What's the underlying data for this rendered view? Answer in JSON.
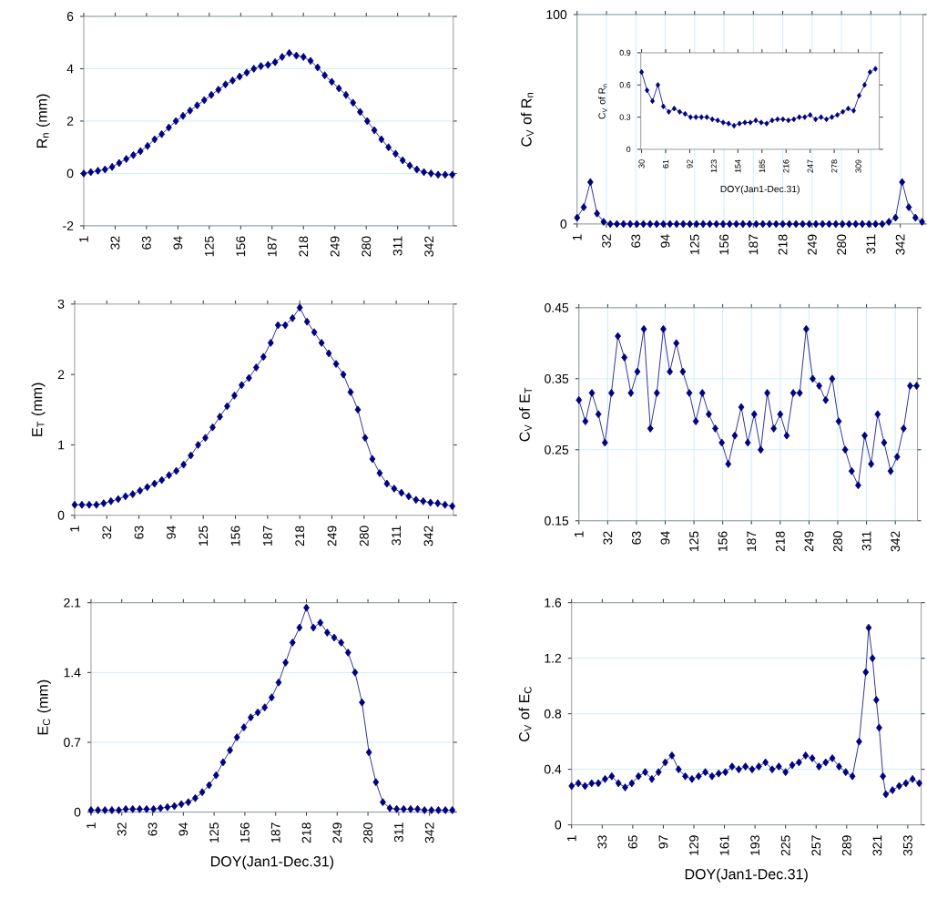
{
  "chart_data": [
    {
      "type": "line",
      "marker": "diamond",
      "line_style": "solid",
      "grid": "y",
      "ylabel": "R$_{n}$ (mm)",
      "xlim": [
        1,
        366
      ],
      "ylim": [
        -2,
        6
      ],
      "xticks": [
        1,
        32,
        63,
        94,
        125,
        156,
        187,
        218,
        249,
        280,
        311,
        342
      ],
      "yticks": [
        -2,
        0,
        2,
        4,
        6
      ],
      "x": [
        1,
        8,
        15,
        22,
        29,
        36,
        43,
        50,
        57,
        64,
        71,
        78,
        85,
        92,
        99,
        106,
        113,
        120,
        127,
        134,
        141,
        148,
        155,
        162,
        169,
        176,
        183,
        190,
        197,
        204,
        211,
        218,
        225,
        232,
        239,
        246,
        253,
        260,
        267,
        274,
        281,
        288,
        295,
        302,
        309,
        316,
        323,
        330,
        337,
        344,
        351,
        358,
        365
      ],
      "series": [
        {
          "color": "#000080",
          "values": [
            0,
            0.05,
            0.1,
            0.15,
            0.25,
            0.4,
            0.55,
            0.7,
            0.85,
            1.05,
            1.3,
            1.5,
            1.75,
            2.0,
            2.2,
            2.4,
            2.6,
            2.8,
            3.0,
            3.2,
            3.4,
            3.55,
            3.7,
            3.85,
            4.0,
            4.1,
            4.15,
            4.25,
            4.45,
            4.6,
            4.5,
            4.45,
            4.3,
            4.05,
            3.75,
            3.5,
            3.25,
            3.0,
            2.7,
            2.35,
            2.0,
            1.65,
            1.3,
            1.0,
            0.75,
            0.5,
            0.3,
            0.15,
            0.05,
            0,
            -0.05,
            -0.05,
            -0.05
          ]
        }
      ]
    },
    {
      "type": "line",
      "marker": "diamond",
      "line_style": "solid",
      "grid": true,
      "ylabel": "C$_{V}$ of R$_{n}$",
      "xlim": [
        1,
        366
      ],
      "ylim": [
        0,
        100
      ],
      "xticks": [
        1,
        32,
        63,
        94,
        125,
        156,
        187,
        218,
        249,
        280,
        311,
        342
      ],
      "yticks": [
        0,
        100
      ],
      "x": [
        1,
        8,
        15,
        22,
        29,
        36,
        43,
        50,
        57,
        64,
        71,
        78,
        85,
        92,
        99,
        106,
        113,
        120,
        127,
        134,
        141,
        148,
        155,
        162,
        169,
        176,
        183,
        190,
        197,
        204,
        211,
        218,
        225,
        232,
        239,
        246,
        253,
        260,
        267,
        274,
        281,
        288,
        295,
        302,
        309,
        316,
        323,
        330,
        337,
        344,
        351,
        358,
        365
      ],
      "series": [
        {
          "color": "#000080",
          "values": [
            3,
            8,
            20,
            5,
            1,
            0,
            0,
            0,
            0,
            0,
            0,
            0,
            0,
            0,
            0,
            0,
            0,
            0,
            0,
            0,
            0,
            0,
            0,
            0,
            0,
            0,
            0,
            0,
            0,
            0,
            0,
            0,
            0,
            0,
            0,
            0,
            0,
            0,
            0,
            0,
            0,
            0,
            0,
            0,
            0,
            0,
            0,
            1,
            3,
            20,
            8,
            3,
            1
          ]
        }
      ]
    },
    {
      "type": "line",
      "marker": "diamond",
      "line_style": "solid",
      "grid": false,
      "ylabel": "C$_{V}$ of R$_{n}$",
      "xlabel": "DOY(Jan1-Dec.31)",
      "xlim": [
        29,
        336
      ],
      "ylim": [
        0,
        0.9
      ],
      "xticks": [
        30,
        61,
        92,
        123,
        154,
        185,
        216,
        247,
        278,
        309
      ],
      "yticks": [
        0,
        0.3,
        0.6,
        0.9
      ],
      "x": [
        30,
        37,
        44,
        51,
        58,
        65,
        72,
        79,
        86,
        93,
        100,
        107,
        114,
        121,
        128,
        135,
        142,
        149,
        156,
        163,
        170,
        177,
        184,
        191,
        198,
        205,
        212,
        219,
        226,
        233,
        240,
        247,
        254,
        261,
        268,
        275,
        282,
        289,
        296,
        303,
        310,
        317,
        324,
        331
      ],
      "series": [
        {
          "color": "#000080",
          "values": [
            0.72,
            0.55,
            0.45,
            0.6,
            0.4,
            0.35,
            0.38,
            0.35,
            0.33,
            0.3,
            0.3,
            0.3,
            0.3,
            0.28,
            0.27,
            0.25,
            0.24,
            0.22,
            0.24,
            0.25,
            0.25,
            0.27,
            0.25,
            0.24,
            0.27,
            0.28,
            0.28,
            0.27,
            0.28,
            0.3,
            0.3,
            0.32,
            0.28,
            0.3,
            0.28,
            0.3,
            0.32,
            0.35,
            0.38,
            0.36,
            0.5,
            0.6,
            0.72,
            0.75
          ]
        }
      ]
    },
    {
      "type": "line",
      "marker": "diamond",
      "line_style": "solid",
      "grid": false,
      "ylabel": "E$_{T}$ (mm)",
      "xlim": [
        1,
        366
      ],
      "ylim": [
        0,
        3
      ],
      "xticks": [
        1,
        32,
        63,
        94,
        125,
        156,
        187,
        218,
        249,
        280,
        311,
        342
      ],
      "yticks": [
        0,
        1,
        2,
        3
      ],
      "x": [
        1,
        8,
        15,
        22,
        29,
        36,
        43,
        50,
        57,
        64,
        71,
        78,
        85,
        92,
        99,
        106,
        113,
        120,
        127,
        134,
        141,
        148,
        155,
        162,
        169,
        176,
        183,
        190,
        197,
        204,
        211,
        218,
        225,
        232,
        239,
        246,
        253,
        260,
        267,
        274,
        281,
        288,
        295,
        302,
        309,
        316,
        323,
        330,
        337,
        344,
        351,
        358,
        365
      ],
      "series": [
        {
          "color": "#000080",
          "values": [
            0.15,
            0.15,
            0.15,
            0.15,
            0.17,
            0.2,
            0.23,
            0.27,
            0.3,
            0.35,
            0.4,
            0.45,
            0.5,
            0.57,
            0.63,
            0.72,
            0.85,
            1.0,
            1.1,
            1.25,
            1.4,
            1.55,
            1.7,
            1.85,
            1.95,
            2.1,
            2.25,
            2.45,
            2.7,
            2.7,
            2.8,
            2.95,
            2.75,
            2.6,
            2.45,
            2.3,
            2.15,
            2.0,
            1.75,
            1.5,
            1.1,
            0.8,
            0.6,
            0.45,
            0.38,
            0.32,
            0.27,
            0.22,
            0.2,
            0.18,
            0.17,
            0.15,
            0.13
          ]
        }
      ]
    },
    {
      "type": "line",
      "marker": "diamond",
      "line_style": "solid",
      "grid": true,
      "ylabel": "C$_{V}$ of E$_{T}$",
      "xlim": [
        1,
        366
      ],
      "ylim": [
        0.15,
        0.45
      ],
      "xticks": [
        1,
        32,
        63,
        94,
        125,
        156,
        187,
        218,
        249,
        280,
        311,
        342
      ],
      "yticks": [
        0.15,
        0.25,
        0.35,
        0.45
      ],
      "x": [
        1,
        8,
        15,
        22,
        29,
        36,
        43,
        50,
        57,
        64,
        71,
        78,
        85,
        92,
        99,
        106,
        113,
        120,
        127,
        134,
        141,
        148,
        155,
        162,
        169,
        176,
        183,
        190,
        197,
        204,
        211,
        218,
        225,
        232,
        239,
        246,
        253,
        260,
        267,
        274,
        281,
        288,
        295,
        302,
        309,
        316,
        323,
        330,
        337,
        344,
        351,
        358,
        365
      ],
      "series": [
        {
          "color": "#000080",
          "values": [
            0.32,
            0.29,
            0.33,
            0.3,
            0.26,
            0.33,
            0.41,
            0.38,
            0.33,
            0.36,
            0.42,
            0.28,
            0.33,
            0.42,
            0.36,
            0.4,
            0.36,
            0.33,
            0.29,
            0.33,
            0.3,
            0.28,
            0.26,
            0.23,
            0.27,
            0.31,
            0.26,
            0.3,
            0.25,
            0.33,
            0.28,
            0.3,
            0.27,
            0.33,
            0.33,
            0.42,
            0.35,
            0.34,
            0.32,
            0.35,
            0.29,
            0.25,
            0.22,
            0.2,
            0.27,
            0.23,
            0.3,
            0.26,
            0.22,
            0.24,
            0.28,
            0.34,
            0.34
          ]
        }
      ]
    },
    {
      "type": "line",
      "marker": "diamond",
      "line_style": "solid",
      "grid": "y",
      "ylabel": "E$_{C}$ (mm)",
      "xlabel": "DOY(Jan1-Dec.31)",
      "xlim": [
        1,
        366
      ],
      "ylim": [
        0,
        2.1
      ],
      "xticks": [
        1,
        32,
        63,
        94,
        125,
        156,
        187,
        218,
        249,
        280,
        311,
        342
      ],
      "yticks": [
        0,
        0.7,
        1.4,
        2.1
      ],
      "x": [
        1,
        8,
        15,
        22,
        29,
        36,
        43,
        50,
        57,
        64,
        71,
        78,
        85,
        92,
        99,
        106,
        113,
        120,
        127,
        134,
        141,
        148,
        155,
        162,
        169,
        176,
        183,
        190,
        197,
        204,
        211,
        218,
        225,
        232,
        239,
        246,
        253,
        260,
        267,
        274,
        281,
        288,
        295,
        302,
        309,
        316,
        323,
        330,
        337,
        344,
        351,
        358,
        365
      ],
      "series": [
        {
          "color": "#000080",
          "values": [
            0.02,
            0.02,
            0.02,
            0.02,
            0.02,
            0.03,
            0.03,
            0.03,
            0.03,
            0.03,
            0.04,
            0.05,
            0.06,
            0.08,
            0.1,
            0.14,
            0.2,
            0.27,
            0.37,
            0.5,
            0.62,
            0.75,
            0.85,
            0.95,
            1.0,
            1.05,
            1.15,
            1.3,
            1.5,
            1.7,
            1.85,
            2.05,
            1.85,
            1.9,
            1.8,
            1.75,
            1.7,
            1.6,
            1.4,
            1.1,
            0.6,
            0.3,
            0.1,
            0.04,
            0.03,
            0.03,
            0.03,
            0.03,
            0.02,
            0.02,
            0.02,
            0.02,
            0.02
          ]
        }
      ]
    },
    {
      "type": "line",
      "marker": "diamond",
      "line_style": "solid",
      "grid": "y",
      "ylabel": "C$_{V}$ of E$_{C}$",
      "xlabel": "DOY(Jan1-Dec.31)",
      "xlim": [
        1,
        367
      ],
      "ylim": [
        0,
        1.6
      ],
      "xticks": [
        1,
        33,
        65,
        97,
        129,
        161,
        193,
        225,
        257,
        289,
        321,
        353
      ],
      "yticks": [
        0,
        0.4,
        0.8,
        1.2,
        1.6
      ],
      "x": [
        1,
        8,
        15,
        22,
        29,
        36,
        43,
        50,
        57,
        64,
        71,
        78,
        85,
        92,
        99,
        106,
        113,
        120,
        127,
        134,
        141,
        148,
        155,
        162,
        169,
        176,
        183,
        190,
        197,
        204,
        211,
        218,
        225,
        232,
        239,
        246,
        253,
        260,
        267,
        274,
        281,
        288,
        295,
        302,
        309,
        312,
        316,
        320,
        323,
        327,
        330,
        337,
        344,
        351,
        358,
        365
      ],
      "series": [
        {
          "color": "#000080",
          "values": [
            0.28,
            0.3,
            0.28,
            0.3,
            0.3,
            0.33,
            0.35,
            0.3,
            0.27,
            0.3,
            0.35,
            0.38,
            0.33,
            0.38,
            0.45,
            0.5,
            0.4,
            0.35,
            0.33,
            0.35,
            0.38,
            0.35,
            0.37,
            0.38,
            0.42,
            0.4,
            0.42,
            0.4,
            0.42,
            0.45,
            0.4,
            0.42,
            0.38,
            0.43,
            0.45,
            0.5,
            0.48,
            0.42,
            0.45,
            0.48,
            0.42,
            0.38,
            0.35,
            0.6,
            1.1,
            1.42,
            1.2,
            0.9,
            0.7,
            0.35,
            0.22,
            0.25,
            0.28,
            0.3,
            0.33,
            0.3
          ]
        }
      ]
    }
  ]
}
